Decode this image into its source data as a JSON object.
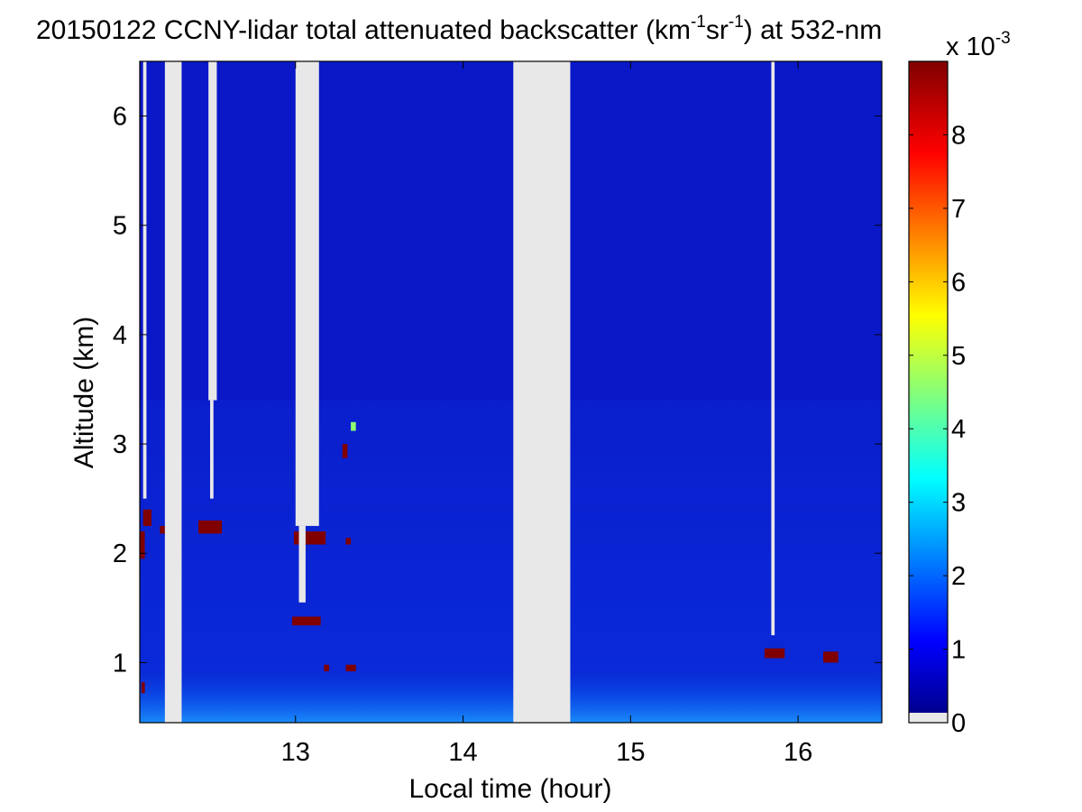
{
  "chart_data": {
    "type": "heatmap",
    "title": {
      "p1": "20150122 CCNY-lidar total attenuated backscatter (km",
      "s1": "-1",
      "p2": "sr",
      "s2": "-1",
      "p3": ") at 532-nm"
    },
    "xlabel": "Local time (hour)",
    "ylabel": "Altitude (km)",
    "xlim": [
      12.07,
      16.5
    ],
    "ylim": [
      0.45,
      6.5
    ],
    "xticks": [
      13,
      14,
      15,
      16
    ],
    "yticks": [
      1,
      2,
      3,
      4,
      5,
      6
    ],
    "colorbar": {
      "range": [
        0,
        0.009
      ],
      "ticks": [
        0,
        1,
        2,
        3,
        4,
        5,
        6,
        7,
        8
      ],
      "multiplier": "x 10",
      "multiplier_exp": "-3",
      "colormap": "jet"
    },
    "no_data_color": "#e8e8e8",
    "background_color": "#0a18c8",
    "no_data_time_intervals": [
      {
        "x0": 12.22,
        "x1": 12.32,
        "y0": 0.45,
        "y1": 6.5
      },
      {
        "x0": 14.3,
        "x1": 14.64,
        "y0": 0.45,
        "y1": 6.5
      },
      {
        "x0": 12.48,
        "x1": 12.53,
        "y0": 3.4,
        "y1": 6.5
      },
      {
        "x0": 12.49,
        "x1": 12.51,
        "y0": 2.5,
        "y1": 3.4
      },
      {
        "x0": 13.0,
        "x1": 13.14,
        "y0": 2.25,
        "y1": 6.5
      },
      {
        "x0": 13.02,
        "x1": 13.06,
        "y0": 1.55,
        "y1": 2.25
      },
      {
        "x0": 15.84,
        "x1": 15.86,
        "y0": 1.25,
        "y1": 6.5
      },
      {
        "x0": 12.09,
        "x1": 12.11,
        "y0": 2.5,
        "y1": 6.5
      }
    ],
    "cloud_layers": [
      {
        "x0": 12.09,
        "x1": 12.14,
        "y0": 2.25,
        "y1": 2.4,
        "value": 0.009
      },
      {
        "x0": 12.07,
        "x1": 12.1,
        "y0": 1.95,
        "y1": 2.2,
        "value": 0.009
      },
      {
        "x0": 12.19,
        "x1": 12.22,
        "y0": 2.18,
        "y1": 2.25,
        "value": 0.009
      },
      {
        "x0": 12.42,
        "x1": 12.56,
        "y0": 2.18,
        "y1": 2.3,
        "value": 0.009
      },
      {
        "x0": 12.99,
        "x1": 13.18,
        "y0": 2.08,
        "y1": 2.2,
        "value": 0.009
      },
      {
        "x0": 12.98,
        "x1": 13.15,
        "y0": 1.34,
        "y1": 1.42,
        "value": 0.009
      },
      {
        "x0": 13.3,
        "x1": 13.33,
        "y0": 2.08,
        "y1": 2.14,
        "value": 0.009
      },
      {
        "x0": 13.28,
        "x1": 13.31,
        "y0": 2.87,
        "y1": 3.0,
        "value": 0.009
      },
      {
        "x0": 13.33,
        "x1": 13.36,
        "y0": 3.12,
        "y1": 3.2,
        "value": 0.0045
      },
      {
        "x0": 15.8,
        "x1": 15.92,
        "y0": 1.04,
        "y1": 1.13,
        "value": 0.009
      },
      {
        "x0": 16.15,
        "x1": 16.24,
        "y0": 1.0,
        "y1": 1.1,
        "value": 0.009
      },
      {
        "x0": 13.17,
        "x1": 13.2,
        "y0": 0.92,
        "y1": 0.98,
        "value": 0.009
      },
      {
        "x0": 13.3,
        "x1": 13.36,
        "y0": 0.92,
        "y1": 0.98,
        "value": 0.009
      },
      {
        "x0": 12.08,
        "x1": 12.1,
        "y0": 0.72,
        "y1": 0.82,
        "value": 0.009
      }
    ],
    "boundary_layer": {
      "y_top": 0.95,
      "value": 0.0022
    },
    "residual_layer": {
      "y_top": 3.4,
      "value": 0.0011
    }
  }
}
